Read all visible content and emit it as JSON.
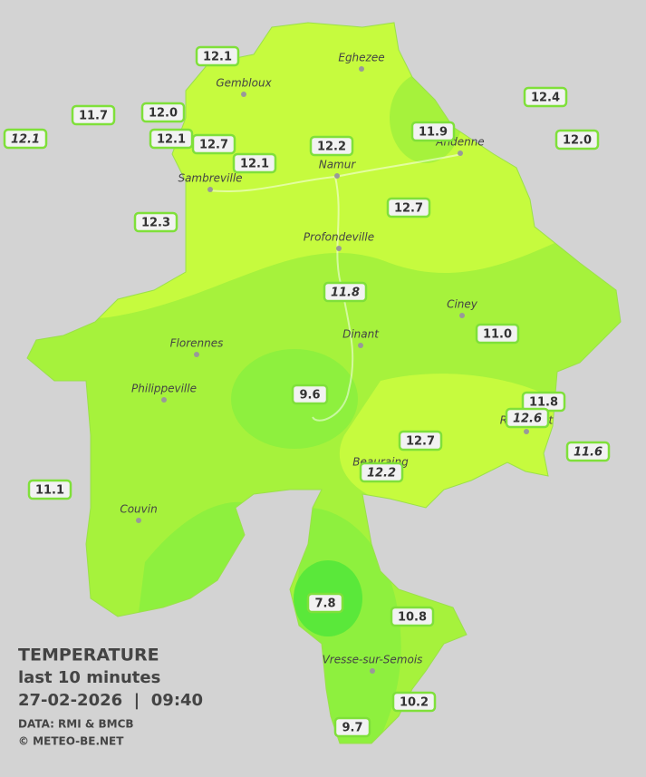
{
  "legend": {
    "title": "TEMPERATURE",
    "period": "last 10 minutes",
    "datetime": "27-02-2026  |  09:40",
    "source": "DATA: RMI & BMCB",
    "copyright": "© METEO-BE.NET"
  },
  "towns": [
    "Eghezee",
    "Gembloux",
    "Andenne",
    "Namur",
    "Sambreville",
    "Profondeville",
    "Ciney",
    "Dinant",
    "Florennes",
    "Philippeville",
    "Rochefort",
    "Beauraing",
    "Couvin",
    "Vresse-sur-Semois"
  ],
  "stations": [
    {
      "label": "12.1"
    },
    {
      "label": "11.7"
    },
    {
      "label": "12.0"
    },
    {
      "label": "12.1",
      "italic": true
    },
    {
      "label": "12.1"
    },
    {
      "label": "12.7"
    },
    {
      "label": "12.1"
    },
    {
      "label": "12.2"
    },
    {
      "label": "11.9"
    },
    {
      "label": "12.4"
    },
    {
      "label": "12.0"
    },
    {
      "label": "12.3"
    },
    {
      "label": "12.7"
    },
    {
      "label": "11.8",
      "italic": true
    },
    {
      "label": "11.0"
    },
    {
      "label": "9.6"
    },
    {
      "label": "11.8"
    },
    {
      "label": "12.6",
      "italic": true
    },
    {
      "label": "12.7"
    },
    {
      "label": "12.2",
      "italic": true
    },
    {
      "label": "11.6",
      "italic": true
    },
    {
      "label": "11.1"
    },
    {
      "label": "7.8"
    },
    {
      "label": "10.8"
    },
    {
      "label": "10.2"
    },
    {
      "label": "9.7"
    }
  ]
}
